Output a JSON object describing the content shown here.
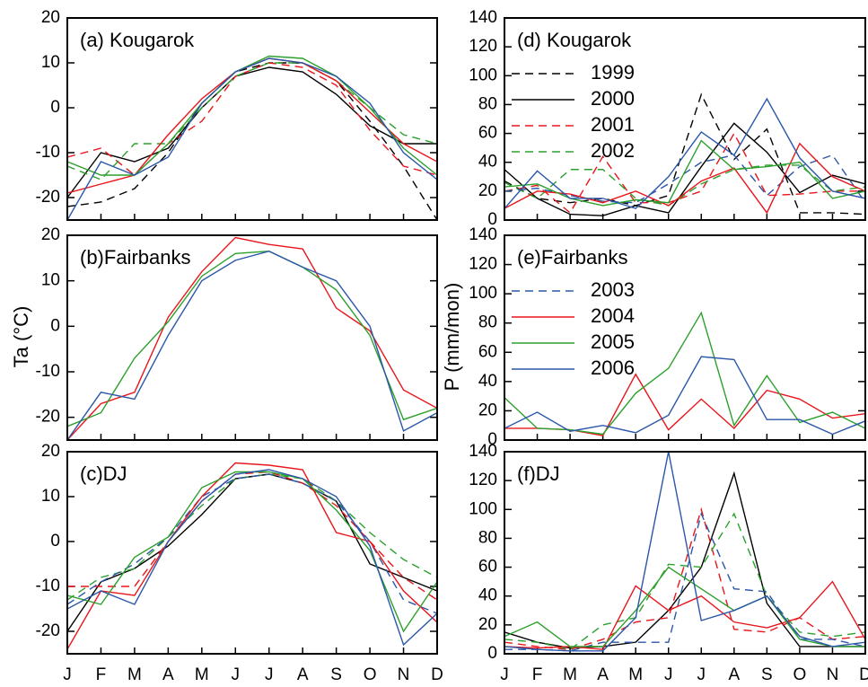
{
  "chart_data": [
    {
      "type": "line",
      "title": "(a) Kougarok",
      "categories": [
        "J",
        "F",
        "M",
        "A",
        "M",
        "J",
        "J",
        "A",
        "S",
        "O",
        "N",
        "D"
      ],
      "ylim": [
        -25,
        20
      ],
      "yticks": [
        -20,
        -10,
        0,
        10,
        20
      ],
      "show_xticklabels": false,
      "series": [
        {
          "name": "1999",
          "color": "#000000",
          "dash": true,
          "legend": false,
          "values": [
            -22,
            -21,
            -18,
            -10,
            1,
            8,
            10,
            10,
            6,
            -3,
            -13,
            -25
          ]
        },
        {
          "name": "2000",
          "color": "#000000",
          "dash": false,
          "legend": false,
          "values": [
            -20,
            -10,
            -12,
            -9,
            0,
            7,
            9,
            8,
            3,
            -4,
            -8,
            -8
          ]
        },
        {
          "name": "2001",
          "color": "#e8161c",
          "dash": true,
          "legend": false,
          "values": [
            -11,
            -9,
            -15,
            -8,
            -3,
            7,
            10,
            9,
            5,
            -5,
            -13,
            -15
          ]
        },
        {
          "name": "2002",
          "color": "#2ca02c",
          "dash": true,
          "legend": false,
          "values": [
            -13,
            -16,
            -8,
            -8,
            0,
            7,
            10,
            10,
            6,
            0,
            -6,
            -8
          ]
        },
        {
          "name": "2004",
          "color": "#e8161c",
          "dash": false,
          "legend": false,
          "values": [
            -19,
            -17,
            -15,
            -6,
            2,
            8,
            11,
            10,
            6,
            -1,
            -8,
            -12
          ]
        },
        {
          "name": "2005",
          "color": "#2ca02c",
          "dash": false,
          "legend": false,
          "values": [
            -12,
            -15,
            -15,
            -8,
            1,
            8,
            11.5,
            11,
            7,
            0,
            -9,
            -15
          ]
        },
        {
          "name": "2006",
          "color": "#2b57a8",
          "dash": false,
          "legend": false,
          "values": [
            -25,
            -12,
            -15,
            -11,
            1,
            8,
            11,
            10,
            7,
            1,
            -10,
            -16
          ]
        }
      ]
    },
    {
      "type": "line",
      "title": "(b)Fairbanks",
      "y_label": "Ta (°C)",
      "categories": [
        "J",
        "F",
        "M",
        "A",
        "M",
        "J",
        "J",
        "A",
        "S",
        "O",
        "N",
        "D"
      ],
      "ylim": [
        -25,
        20
      ],
      "yticks": [
        -20,
        -10,
        0,
        10,
        20
      ],
      "show_xticklabels": false,
      "series": [
        {
          "name": "2004",
          "color": "#e8161c",
          "dash": false,
          "legend": false,
          "values": [
            -25,
            -17,
            -14.5,
            2,
            12,
            19.5,
            18,
            17,
            4,
            -1,
            -14,
            -18
          ]
        },
        {
          "name": "2005",
          "color": "#2ca02c",
          "dash": false,
          "legend": false,
          "values": [
            -22,
            -19,
            -7,
            1,
            11,
            16,
            16.5,
            13,
            8,
            -2,
            -20.5,
            -18
          ]
        },
        {
          "name": "2006",
          "color": "#2b57a8",
          "dash": false,
          "legend": false,
          "values": [
            -25,
            -14.5,
            -16,
            -2,
            10,
            14.5,
            16.5,
            13,
            10,
            0,
            -23,
            -19
          ]
        }
      ]
    },
    {
      "type": "line",
      "title": "(c)DJ",
      "categories": [
        "J",
        "F",
        "M",
        "A",
        "M",
        "J",
        "J",
        "A",
        "S",
        "O",
        "N",
        "D"
      ],
      "ylim": [
        -25,
        20
      ],
      "yticks": [
        -20,
        -10,
        0,
        10,
        20
      ],
      "show_xticklabels": true,
      "series": [
        {
          "name": "2000",
          "color": "#000000",
          "dash": false,
          "legend": false,
          "values": [
            -20,
            -9,
            -6,
            -1,
            6,
            14,
            15,
            13,
            9,
            -5,
            -8,
            -11
          ]
        },
        {
          "name": "2001",
          "color": "#e8161c",
          "dash": true,
          "legend": false,
          "values": [
            -10,
            -10,
            -10,
            0,
            9,
            15,
            15.5,
            13,
            8,
            0,
            -8,
            -13
          ]
        },
        {
          "name": "2002",
          "color": "#2ca02c",
          "dash": true,
          "legend": false,
          "values": [
            -13,
            -8,
            -6,
            1,
            8,
            14,
            15,
            14,
            9,
            2,
            -4,
            -8
          ]
        },
        {
          "name": "2003",
          "color": "#2b57a8",
          "dash": true,
          "legend": false,
          "values": [
            -14,
            -9,
            -5,
            1,
            10,
            14,
            15,
            13,
            9,
            0,
            -13,
            -16
          ]
        },
        {
          "name": "2004",
          "color": "#e8161c",
          "dash": false,
          "legend": false,
          "values": [
            -24,
            -11,
            -12,
            0,
            10,
            17.5,
            17,
            16,
            2,
            0,
            -11,
            -18
          ]
        },
        {
          "name": "2005",
          "color": "#2ca02c",
          "dash": false,
          "legend": false,
          "values": [
            -12,
            -14,
            -3.5,
            1,
            12,
            15.5,
            15.5,
            14,
            7,
            -2,
            -20,
            -9
          ]
        },
        {
          "name": "2006",
          "color": "#2b57a8",
          "dash": false,
          "legend": false,
          "values": [
            -15,
            -11,
            -14,
            0,
            9,
            15,
            16,
            14,
            10,
            -1,
            -23,
            -16
          ]
        }
      ]
    },
    {
      "type": "line",
      "title": "(d) Kougarok",
      "categories": [
        "J",
        "F",
        "M",
        "A",
        "M",
        "J",
        "J",
        "A",
        "S",
        "O",
        "N",
        "D"
      ],
      "ylim": [
        0,
        140
      ],
      "yticks": [
        0,
        20,
        40,
        60,
        80,
        100,
        120,
        140
      ],
      "show_xticklabels": false,
      "series": [
        {
          "name": "1999",
          "color": "#000000",
          "dash": true,
          "legend": true,
          "values": [
            27,
            15,
            12,
            15,
            10,
            17,
            87,
            42,
            63,
            5,
            5,
            4
          ]
        },
        {
          "name": "2000",
          "color": "#000000",
          "dash": false,
          "legend": true,
          "values": [
            35,
            15,
            4,
            3,
            10,
            5,
            37,
            67,
            47,
            19,
            31,
            25
          ]
        },
        {
          "name": "2001",
          "color": "#e8161c",
          "dash": true,
          "legend": true,
          "values": [
            20,
            24,
            5,
            44,
            12,
            12,
            20,
            60,
            17,
            18,
            20,
            20
          ]
        },
        {
          "name": "2002",
          "color": "#2ca02c",
          "dash": true,
          "legend": true,
          "values": [
            26,
            15,
            35,
            35,
            15,
            10,
            25,
            35,
            38,
            38,
            20,
            23
          ]
        },
        {
          "name": "2003",
          "color": "#2b57a8",
          "dash": true,
          "legend": false,
          "values": [
            20,
            22,
            17,
            13,
            12,
            25,
            40,
            45,
            17,
            37,
            45,
            12
          ]
        },
        {
          "name": "2004",
          "color": "#e8161c",
          "dash": false,
          "legend": false,
          "values": [
            8,
            20,
            18,
            12,
            20,
            10,
            27,
            36,
            5,
            53,
            30,
            20
          ]
        },
        {
          "name": "2005",
          "color": "#2ca02c",
          "dash": false,
          "legend": false,
          "values": [
            23,
            25,
            15,
            10,
            14,
            12,
            55,
            35,
            37,
            40,
            15,
            20
          ]
        },
        {
          "name": "2006",
          "color": "#2b57a8",
          "dash": false,
          "legend": false,
          "values": [
            8,
            34,
            15,
            15,
            8,
            30,
            61,
            45,
            84,
            43,
            20,
            15
          ]
        }
      ]
    },
    {
      "type": "line",
      "title": "(e)Fairbanks",
      "y_label": "P (mm/mon)",
      "categories": [
        "J",
        "F",
        "M",
        "A",
        "M",
        "J",
        "J",
        "A",
        "S",
        "O",
        "N",
        "D"
      ],
      "ylim": [
        0,
        140
      ],
      "yticks": [
        0,
        20,
        40,
        60,
        80,
        100,
        120,
        140
      ],
      "show_xticklabels": false,
      "series": [
        {
          "name": "2003",
          "color": "#2b57a8",
          "dash": true,
          "legend": true,
          "values": [
            null,
            null,
            null,
            null,
            null,
            null,
            null,
            null,
            null,
            null,
            null,
            null
          ]
        },
        {
          "name": "2004",
          "color": "#e8161c",
          "dash": false,
          "legend": true,
          "values": [
            8,
            8,
            7,
            3,
            45,
            7,
            28,
            8,
            34,
            28,
            15,
            18
          ]
        },
        {
          "name": "2005",
          "color": "#2ca02c",
          "dash": false,
          "legend": true,
          "values": [
            29,
            8,
            7,
            4,
            32,
            49,
            87,
            10,
            44,
            12,
            19,
            8
          ]
        },
        {
          "name": "2006",
          "color": "#2b57a8",
          "dash": false,
          "legend": true,
          "values": [
            8,
            19,
            6,
            10,
            5,
            17,
            57,
            55,
            14,
            14,
            4,
            13
          ]
        }
      ]
    },
    {
      "type": "line",
      "title": "(f)DJ",
      "categories": [
        "J",
        "F",
        "M",
        "A",
        "M",
        "J",
        "J",
        "A",
        "S",
        "O",
        "N",
        "D"
      ],
      "ylim": [
        0,
        140
      ],
      "yticks": [
        0,
        20,
        40,
        60,
        80,
        100,
        120,
        140
      ],
      "show_xticklabels": true,
      "series": [
        {
          "name": "2000",
          "color": "#000000",
          "dash": false,
          "legend": false,
          "values": [
            15,
            8,
            4,
            5,
            8,
            30,
            60,
            125,
            35,
            5,
            5,
            5
          ]
        },
        {
          "name": "2001",
          "color": "#e8161c",
          "dash": true,
          "legend": false,
          "values": [
            8,
            5,
            3,
            10,
            22,
            25,
            100,
            17,
            15,
            25,
            10,
            12
          ]
        },
        {
          "name": "2002",
          "color": "#2ca02c",
          "dash": true,
          "legend": false,
          "values": [
            10,
            8,
            3,
            20,
            25,
            62,
            60,
            97,
            40,
            15,
            12,
            15
          ]
        },
        {
          "name": "2003",
          "color": "#2b57a8",
          "dash": true,
          "legend": false,
          "values": [
            3,
            3,
            2,
            8,
            8,
            8,
            97,
            45,
            43,
            10,
            10,
            5
          ]
        },
        {
          "name": "2004",
          "color": "#e8161c",
          "dash": false,
          "legend": false,
          "values": [
            5,
            4,
            5,
            3,
            47,
            30,
            40,
            22,
            18,
            25,
            50,
            10
          ]
        },
        {
          "name": "2005",
          "color": "#2ca02c",
          "dash": false,
          "legend": false,
          "values": [
            12,
            22,
            5,
            5,
            30,
            60,
            45,
            30,
            40,
            10,
            5,
            5
          ]
        },
        {
          "name": "2006",
          "color": "#2b57a8",
          "dash": false,
          "legend": false,
          "values": [
            5,
            3,
            2,
            2,
            25,
            140,
            23,
            30,
            40,
            12,
            5,
            8
          ]
        }
      ]
    }
  ]
}
